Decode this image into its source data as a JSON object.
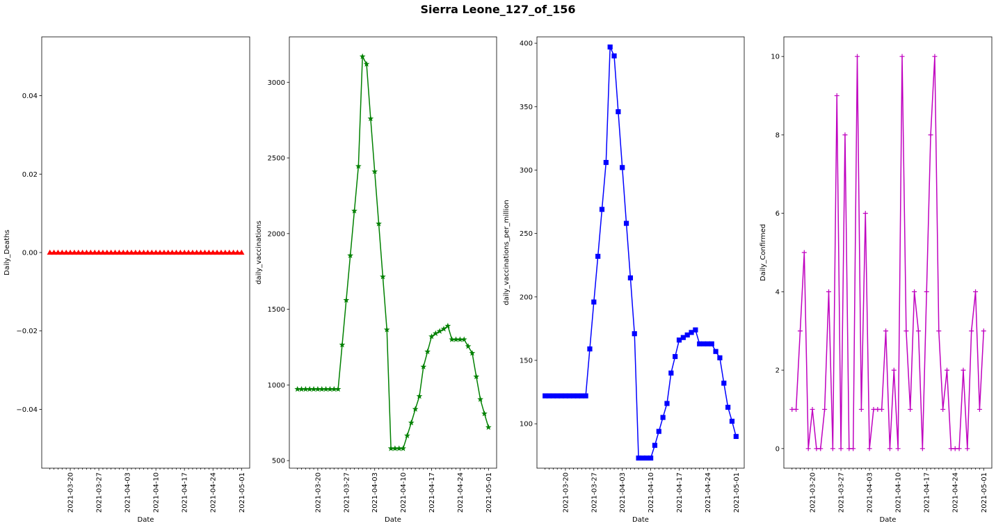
{
  "figure": {
    "title": "Sierra Leone_127_of_156"
  },
  "chart_data": [
    {
      "type": "line",
      "xlabel": "Date",
      "ylabel": "Daily_Deaths",
      "color": "#ff0000",
      "marker": "triangle",
      "xlim": [
        "2021-03-13",
        "2021-05-03"
      ],
      "ylim": [
        -0.055,
        0.055
      ],
      "yticks": [
        -0.04,
        -0.02,
        0.0,
        0.02,
        0.04
      ],
      "ytick_labels": [
        "−0.04",
        "−0.02",
        "0.00",
        "0.02",
        "0.04"
      ],
      "xticks": [
        "2021-03-20",
        "2021-03-27",
        "2021-04-03",
        "2021-04-10",
        "2021-04-17",
        "2021-04-24",
        "2021-05-01"
      ],
      "x_start": "2021-03-15",
      "values": [
        0,
        0,
        0,
        0,
        0,
        0,
        0,
        0,
        0,
        0,
        0,
        0,
        0,
        0,
        0,
        0,
        0,
        0,
        0,
        0,
        0,
        0,
        0,
        0,
        0,
        0,
        0,
        0,
        0,
        0,
        0,
        0,
        0,
        0,
        0,
        0,
        0,
        0,
        0,
        0,
        0,
        0,
        0,
        0,
        0,
        0,
        0,
        0
      ]
    },
    {
      "type": "line",
      "xlabel": "Date",
      "ylabel": "daily_vaccinations",
      "color": "#008000",
      "marker": "star",
      "xlim": [
        "2021-03-13",
        "2021-05-03"
      ],
      "ylim": [
        450,
        3300
      ],
      "yticks": [
        500,
        1000,
        1500,
        2000,
        2500,
        3000
      ],
      "ytick_labels": [
        "500",
        "1000",
        "1500",
        "2000",
        "2500",
        "3000"
      ],
      "xticks": [
        "2021-03-20",
        "2021-03-27",
        "2021-04-03",
        "2021-04-10",
        "2021-04-17",
        "2021-04-24",
        "2021-05-01"
      ],
      "x_start": "2021-03-15",
      "values": [
        972,
        972,
        972,
        972,
        972,
        972,
        972,
        972,
        972,
        972,
        972,
        1265,
        1560,
        1855,
        2150,
        2445,
        3170,
        3120,
        2760,
        2410,
        2065,
        1715,
        1365,
        580,
        580,
        580,
        580,
        665,
        750,
        840,
        925,
        1120,
        1220,
        1320,
        1340,
        1355,
        1370,
        1390,
        1300,
        1300,
        1300,
        1300,
        1255,
        1210,
        1055,
        905,
        810,
        720
      ]
    },
    {
      "type": "line",
      "xlabel": "Date",
      "ylabel": "daily_vaccinations_per_million",
      "color": "#0000ff",
      "marker": "square",
      "xlim": [
        "2021-03-13",
        "2021-05-03"
      ],
      "ylim": [
        65,
        405
      ],
      "yticks": [
        100,
        150,
        200,
        250,
        300,
        350,
        400
      ],
      "ytick_labels": [
        "100",
        "150",
        "200",
        "250",
        "300",
        "350",
        "400"
      ],
      "xticks": [
        "2021-03-20",
        "2021-03-27",
        "2021-04-03",
        "2021-04-10",
        "2021-04-17",
        "2021-04-24",
        "2021-05-01"
      ],
      "x_start": "2021-03-15",
      "values": [
        122,
        122,
        122,
        122,
        122,
        122,
        122,
        122,
        122,
        122,
        122,
        159,
        196,
        232,
        269,
        306,
        397,
        390,
        346,
        302,
        258,
        215,
        171,
        73,
        73,
        73,
        73,
        83,
        94,
        105,
        116,
        140,
        153,
        166,
        168,
        170,
        172,
        174,
        163,
        163,
        163,
        163,
        157,
        152,
        132,
        113,
        102,
        90
      ]
    },
    {
      "type": "line",
      "xlabel": "Date",
      "ylabel": "Daily_Confirmed",
      "color": "#bf00bf",
      "marker": "plus",
      "xlim": [
        "2021-03-13",
        "2021-05-03"
      ],
      "ylim": [
        -0.5,
        10.5
      ],
      "yticks": [
        0,
        2,
        4,
        6,
        8,
        10
      ],
      "ytick_labels": [
        "0",
        "2",
        "4",
        "6",
        "8",
        "10"
      ],
      "xticks": [
        "2021-03-20",
        "2021-03-27",
        "2021-04-03",
        "2021-04-10",
        "2021-04-17",
        "2021-04-24",
        "2021-05-01"
      ],
      "x_start": "2021-03-15",
      "values": [
        1,
        1,
        3,
        5,
        0,
        1,
        0,
        0,
        1,
        4,
        0,
        9,
        0,
        8,
        0,
        0,
        10,
        1,
        6,
        0,
        1,
        1,
        1,
        3,
        0,
        2,
        0,
        10,
        3,
        1,
        4,
        3,
        0,
        4,
        8,
        10,
        3,
        1,
        2,
        0,
        0,
        0,
        2,
        0,
        3,
        4,
        1,
        3
      ]
    }
  ]
}
